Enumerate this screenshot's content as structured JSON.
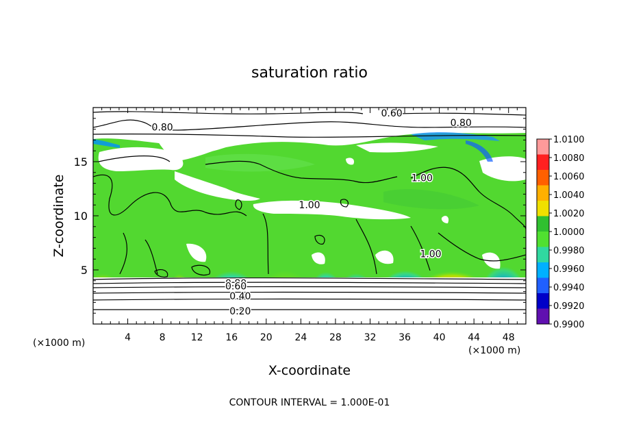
{
  "chart_data": {
    "type": "heatmap",
    "title": "saturation ratio",
    "xlabel": "X-coordinate",
    "ylabel": "Z-coordinate",
    "x_unit_label": "(×1000 m)",
    "x_unit_label_right": "(×1000 m)",
    "xlim": [
      0,
      50
    ],
    "ylim": [
      0,
      20
    ],
    "x_ticks": [
      4,
      8,
      12,
      16,
      20,
      24,
      28,
      32,
      36,
      40,
      44,
      48
    ],
    "y_ticks": [
      5,
      10,
      15
    ],
    "footer": "CONTOUR INTERVAL = 1.000E-01",
    "colorbar": {
      "labels": [
        "1.0100",
        "1.0080",
        "1.0060",
        "1.0040",
        "1.0020",
        "1.0000",
        "0.9980",
        "0.9960",
        "0.9940",
        "0.9920",
        "0.9900"
      ],
      "colors": [
        "#ff9a9a",
        "#ff2020",
        "#ff6000",
        "#ffb000",
        "#f0e000",
        "#30c030",
        "#50e030",
        "#30d8a0",
        "#00b0ff",
        "#2060ff",
        "#0000c8",
        "#6010b0"
      ]
    },
    "contour_labels": [
      {
        "text": "0.60",
        "x": 34.5,
        "z": 19.5
      },
      {
        "text": "0.80",
        "x": 8.0,
        "z": 18.2
      },
      {
        "text": "0.80",
        "x": 42.5,
        "z": 18.6
      },
      {
        "text": "1.00",
        "x": 38.0,
        "z": 13.5
      },
      {
        "text": "1.00",
        "x": 25.0,
        "z": 11.0
      },
      {
        "text": "1.00",
        "x": 39.0,
        "z": 6.5
      },
      {
        "text": "0.80",
        "x": 16.5,
        "z": 3.8
      },
      {
        "text": "0.60",
        "x": 16.5,
        "z": 3.5
      },
      {
        "text": "0.40",
        "x": 17.0,
        "z": 2.6
      },
      {
        "text": "0.20",
        "x": 17.0,
        "z": 1.2
      }
    ]
  }
}
